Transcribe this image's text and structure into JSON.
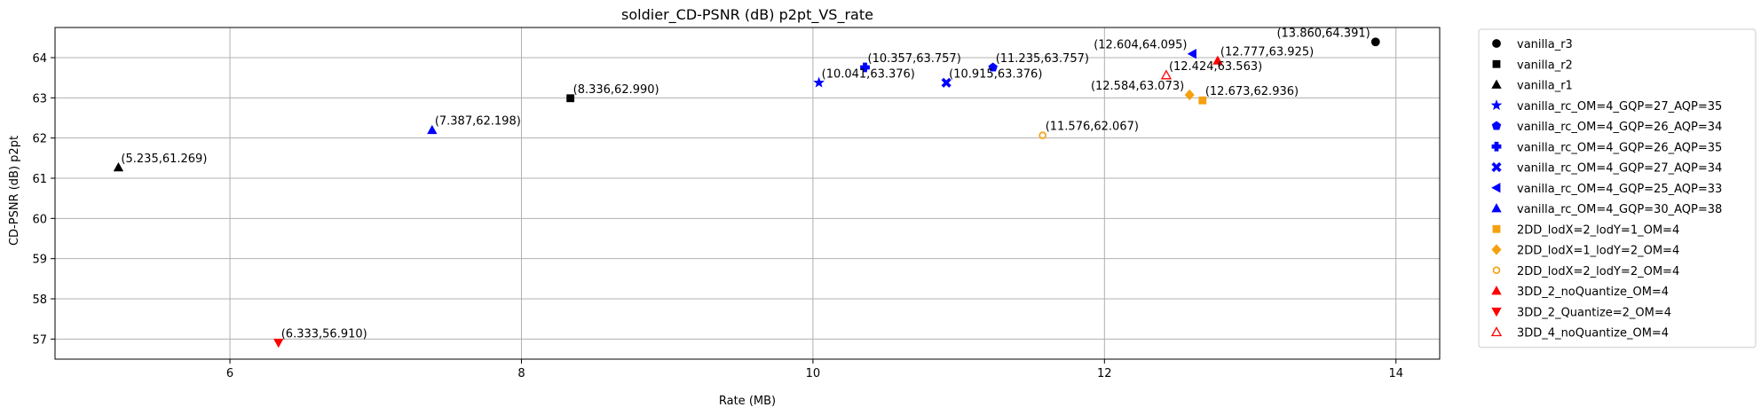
{
  "chart_data": {
    "type": "scatter",
    "title": "soldier_CD-PSNR (dB) p2pt_VS_rate",
    "xlabel": "Rate (MB)",
    "ylabel": "CD-PSNR (dB) p2pt",
    "xlim": [
      4.8,
      14.3
    ],
    "ylim": [
      56.5,
      64.75
    ],
    "xticks": [
      6,
      8,
      10,
      12,
      14
    ],
    "yticks": [
      57,
      58,
      59,
      60,
      61,
      62,
      63,
      64
    ],
    "grid": true,
    "legend_position": "outside-right",
    "series": [
      {
        "name": "vanilla_r3",
        "marker": "circle",
        "color": "#000000",
        "x": 13.86,
        "y": 64.391,
        "label": "(13.860,64.391)",
        "label_anchor": "left"
      },
      {
        "name": "vanilla_r2",
        "marker": "square",
        "color": "#000000",
        "x": 8.336,
        "y": 62.99,
        "label": "(8.336,62.990)",
        "label_anchor": "right"
      },
      {
        "name": "vanilla_r1",
        "marker": "triangle-up",
        "color": "#000000",
        "x": 5.235,
        "y": 61.269,
        "label": "(5.235,61.269)",
        "label_anchor": "right"
      },
      {
        "name": "vanilla_rc_OM=4_GQP=27_AQP=35",
        "marker": "star",
        "color": "#0000ff",
        "x": 10.041,
        "y": 63.376,
        "label": "(10.041,63.376)",
        "label_anchor": "right"
      },
      {
        "name": "vanilla_rc_OM=4_GQP=26_AQP=34",
        "marker": "pentagon",
        "color": "#0000ff",
        "x": 11.235,
        "y": 63.757,
        "label": "(11.235,63.757)",
        "label_anchor": "right"
      },
      {
        "name": "vanilla_rc_OM=4_GQP=26_AQP=35",
        "marker": "plus",
        "color": "#0000ff",
        "x": 10.357,
        "y": 63.757,
        "label": "(10.357,63.757)",
        "label_anchor": "right"
      },
      {
        "name": "vanilla_rc_OM=4_GQP=27_AQP=34",
        "marker": "x",
        "color": "#0000ff",
        "x": 10.915,
        "y": 63.376,
        "label": "(10.915,63.376)",
        "label_anchor": "right"
      },
      {
        "name": "vanilla_rc_OM=4_GQP=25_AQP=33",
        "marker": "triangle-left",
        "color": "#0000ff",
        "x": 12.604,
        "y": 64.095,
        "label": "(12.604,64.095)",
        "label_anchor": "left"
      },
      {
        "name": "vanilla_rc_OM=4_GQP=30_AQP=38",
        "marker": "triangle-up",
        "color": "#0000ff",
        "x": 7.387,
        "y": 62.198,
        "label": "(7.387,62.198)",
        "label_anchor": "right"
      },
      {
        "name": "2DD_lodX=2_lodY=1_OM=4",
        "marker": "square",
        "color": "#f5a00f",
        "x": 12.673,
        "y": 62.936,
        "label": "(12.673,62.936)",
        "label_anchor": "right"
      },
      {
        "name": "2DD_lodX=1_lodY=2_OM=4",
        "marker": "diamond",
        "color": "#f5a00f",
        "x": 12.584,
        "y": 63.073,
        "label": "(12.584,63.073)",
        "label_anchor": "left"
      },
      {
        "name": "2DD_lodX=2_lodY=2_OM=4",
        "marker": "octagon-open",
        "color": "#f5a00f",
        "x": 11.576,
        "y": 62.067,
        "label": "(11.576,62.067)",
        "label_anchor": "right"
      },
      {
        "name": "3DD_2_noQuantize_OM=4",
        "marker": "triangle-up",
        "color": "#ff0000",
        "x": 12.777,
        "y": 63.925,
        "label": "(12.777,63.925)",
        "label_anchor": "right"
      },
      {
        "name": "3DD_2_Quantize=2_OM=4",
        "marker": "triangle-down",
        "color": "#ff0000",
        "x": 6.333,
        "y": 56.91,
        "label": "(6.333,56.910)",
        "label_anchor": "right"
      },
      {
        "name": "3DD_4_noQuantize_OM=4",
        "marker": "triangle-up-open",
        "color": "#ff0000",
        "x": 12.424,
        "y": 63.563,
        "label": "(12.424,63.563)",
        "label_anchor": "right"
      }
    ]
  }
}
